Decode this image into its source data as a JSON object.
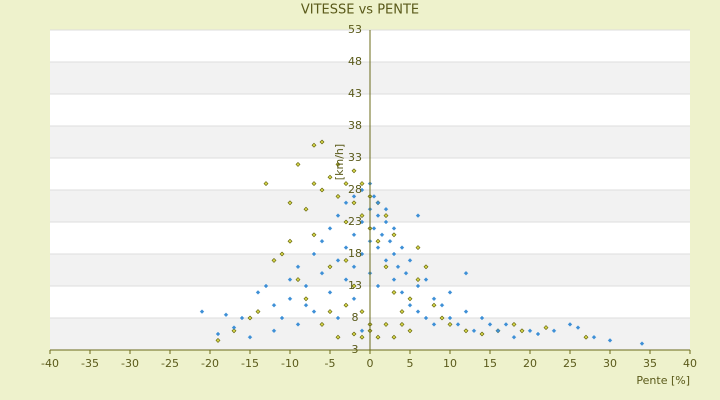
{
  "chart_data": {
    "type": "scatter",
    "title": "VITESSE vs PENTE",
    "x_label": "Pente [%]",
    "y_label": "[km/h]",
    "xlim": [
      -40,
      40
    ],
    "xticks": [
      -40,
      -35,
      -30,
      -25,
      -20,
      -15,
      -10,
      -5,
      0,
      5,
      10,
      15,
      20,
      25,
      30,
      35,
      40
    ],
    "ylim": [
      3,
      53
    ],
    "yticks": [
      3,
      8,
      13,
      18,
      23,
      28,
      33,
      38,
      43,
      48,
      53
    ],
    "grid": true,
    "series": [
      {
        "color": "#d6d64a",
        "x": [
          -7,
          -6,
          -9,
          -13,
          -10,
          -8,
          -7,
          -6,
          -5,
          -4,
          -4,
          -3,
          -3,
          -2,
          -2,
          -1,
          -1,
          0,
          0,
          1,
          1,
          2,
          2,
          3,
          3,
          -2,
          -1,
          0,
          1,
          2,
          -3,
          -5,
          -6,
          -8,
          -9,
          -10,
          -11,
          -12,
          -14,
          -17,
          -19,
          -15,
          -4,
          -2,
          -1,
          0,
          3,
          4,
          5,
          6,
          7,
          8,
          9,
          10,
          12,
          14,
          16,
          18,
          19,
          22,
          27,
          5,
          4,
          6,
          -5,
          -7,
          -3
        ],
        "values": [
          35,
          35.5,
          32,
          29,
          26,
          25,
          29,
          28,
          30,
          27,
          32,
          29,
          23,
          31,
          26,
          29,
          24,
          27,
          22,
          26,
          20,
          24,
          16,
          21,
          12,
          13,
          9,
          6,
          5,
          7,
          10,
          9,
          7,
          11,
          14,
          20,
          18,
          17,
          9,
          6,
          4.5,
          8,
          5,
          5.5,
          5,
          7,
          5,
          9,
          11,
          14,
          16,
          10,
          8,
          7,
          6,
          5.5,
          6,
          7,
          6,
          6.5,
          5,
          6,
          7,
          19,
          16,
          21,
          17
        ]
      },
      {
        "color": "#3d8fd6",
        "x": [
          -21,
          -18,
          -19,
          -17,
          -16,
          -14,
          -13,
          -12,
          -11,
          -10,
          -10,
          -9,
          -8,
          -8,
          -7,
          -7,
          -6,
          -6,
          -5,
          -5,
          -4,
          -4,
          -4,
          -3,
          -3,
          -3,
          -2,
          -2,
          -2,
          -2,
          -1,
          -1,
          -1,
          -1,
          0,
          0,
          0,
          0,
          0.5,
          0.5,
          1,
          1,
          1,
          1,
          1.5,
          2,
          2,
          2,
          2.5,
          3,
          3,
          3,
          3.5,
          4,
          4,
          4.5,
          5,
          5,
          6,
          6,
          7,
          7,
          8,
          8,
          9,
          10,
          10,
          11,
          12,
          13,
          14,
          15,
          16,
          17,
          18,
          20,
          21,
          23,
          25,
          26,
          28,
          30,
          34,
          12,
          6,
          -15,
          -12,
          -9
        ],
        "values": [
          9,
          8.5,
          5.5,
          6.5,
          8,
          12,
          13,
          10,
          8,
          11,
          14,
          16,
          13,
          10,
          18,
          9,
          15,
          20,
          12,
          22,
          17,
          24,
          8,
          19,
          26,
          14,
          21,
          27,
          16,
          11,
          23,
          28,
          18,
          6,
          25,
          29,
          20,
          15,
          27,
          22,
          24,
          26,
          19,
          13,
          21,
          23,
          17,
          25,
          20,
          18,
          22,
          14,
          16,
          19,
          12,
          15,
          17,
          10,
          13,
          9,
          14,
          8,
          11,
          7,
          10,
          8,
          12,
          7,
          9,
          6,
          8,
          7,
          6,
          7,
          5,
          6,
          5.5,
          6,
          7,
          6.5,
          5,
          4.5,
          4,
          15,
          24,
          5,
          6,
          7
        ]
      }
    ]
  }
}
